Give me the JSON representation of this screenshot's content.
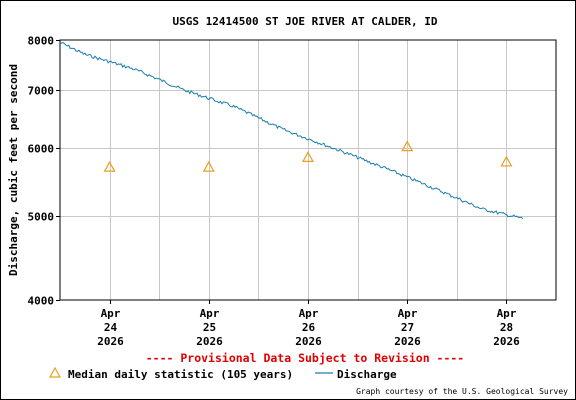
{
  "colors": {
    "discharge": "#1a7db0",
    "median": "#e8a020",
    "provisional": "#e00000",
    "grid": "#c8c8c8",
    "axis": "#000000"
  },
  "footer": {
    "provisional_note": "---- Provisional Data Subject to Revision ----",
    "courtesy": "Graph courtesy of the U.S. Geological Survey"
  },
  "chart_data": {
    "type": "line",
    "title": "USGS 12414500 ST JOE RIVER AT CALDER, ID",
    "ylabel": "Discharge, cubic feet per second",
    "xlabel": "",
    "y_scale": "log",
    "ylim": [
      4000,
      8000
    ],
    "y_ticks": [
      4000,
      5000,
      6000,
      7000,
      8000
    ],
    "x_ticks": [
      {
        "date": "2026-04-24",
        "month": "Apr",
        "day": "24",
        "year": "2026"
      },
      {
        "date": "2026-04-25",
        "month": "Apr",
        "day": "25",
        "year": "2026"
      },
      {
        "date": "2026-04-26",
        "month": "Apr",
        "day": "26",
        "year": "2026"
      },
      {
        "date": "2026-04-27",
        "month": "Apr",
        "day": "27",
        "year": "2026"
      },
      {
        "date": "2026-04-28",
        "month": "Apr",
        "day": "28",
        "year": "2026"
      }
    ],
    "xlim": [
      "2026-04-23T12:00",
      "2026-04-28T12:00"
    ],
    "grid": true,
    "legend_position": "bottom-left",
    "series": [
      {
        "name": "Discharge",
        "style": "line",
        "points": [
          [
            "2026-04-23T12:00",
            7950
          ],
          [
            "2026-04-23T18:00",
            7700
          ],
          [
            "2026-04-24T00:00",
            7550
          ],
          [
            "2026-04-24T06:00",
            7400
          ],
          [
            "2026-04-24T12:00",
            7200
          ],
          [
            "2026-04-24T18:00",
            7000
          ],
          [
            "2026-04-25T00:00",
            6850
          ],
          [
            "2026-04-25T06:00",
            6700
          ],
          [
            "2026-04-25T12:00",
            6500
          ],
          [
            "2026-04-25T18:00",
            6300
          ],
          [
            "2026-04-26T00:00",
            6150
          ],
          [
            "2026-04-26T06:00",
            6000
          ],
          [
            "2026-04-26T12:00",
            5850
          ],
          [
            "2026-04-26T18:00",
            5700
          ],
          [
            "2026-04-27T00:00",
            5550
          ],
          [
            "2026-04-27T06:00",
            5400
          ],
          [
            "2026-04-27T12:00",
            5250
          ],
          [
            "2026-04-27T18:00",
            5100
          ],
          [
            "2026-04-28T00:00",
            5020
          ],
          [
            "2026-04-28T04:00",
            4970
          ]
        ]
      },
      {
        "name": "Median daily statistic (105 years)",
        "style": "marker",
        "points": [
          [
            "2026-04-24T00:00",
            5700
          ],
          [
            "2026-04-25T00:00",
            5700
          ],
          [
            "2026-04-26T00:00",
            5850
          ],
          [
            "2026-04-27T00:00",
            6020
          ],
          [
            "2026-04-28T00:00",
            5780
          ]
        ]
      }
    ]
  }
}
